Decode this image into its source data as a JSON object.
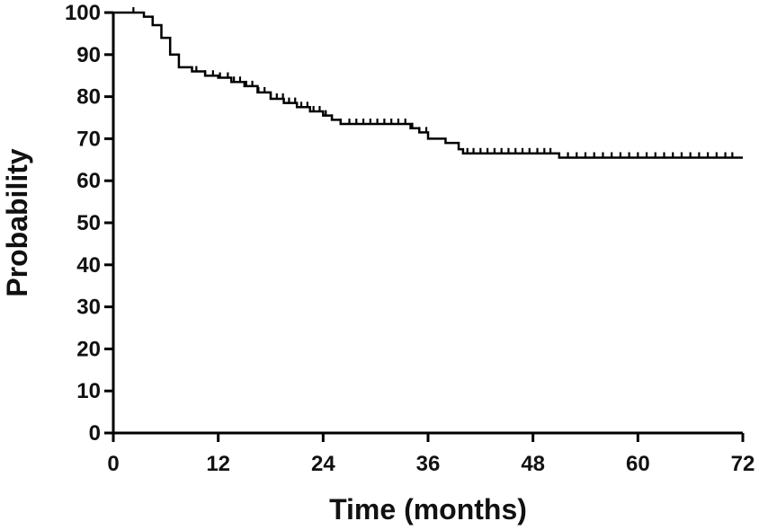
{
  "chart_data": {
    "type": "line",
    "title": "",
    "xlabel": "Time (months)",
    "ylabel": "Probability",
    "xlim": [
      0,
      72
    ],
    "ylim": [
      0,
      100
    ],
    "x_ticks": [
      "0",
      "12",
      "24",
      "36",
      "48",
      "60",
      "72"
    ],
    "y_ticks": [
      "0",
      "10",
      "20",
      "30",
      "40",
      "50",
      "60",
      "70",
      "80",
      "90",
      "100"
    ],
    "grid": false,
    "legend": "none",
    "line_color": "#000000",
    "series": [
      {
        "style": "step",
        "points": [
          [
            0,
            100
          ],
          [
            2.5,
            100
          ],
          [
            3.5,
            99
          ],
          [
            4.5,
            97
          ],
          [
            5.5,
            94
          ],
          [
            6.5,
            90
          ],
          [
            7.5,
            87
          ],
          [
            9,
            86
          ],
          [
            10.5,
            85
          ],
          [
            12,
            84.5
          ],
          [
            13.5,
            83.5
          ],
          [
            15,
            82.5
          ],
          [
            16.5,
            81
          ],
          [
            18,
            79.5
          ],
          [
            19.5,
            78.5
          ],
          [
            21,
            77.5
          ],
          [
            22.5,
            76.5
          ],
          [
            24,
            75.5
          ],
          [
            25,
            74.5
          ],
          [
            26,
            73.5
          ],
          [
            33,
            73.5
          ],
          [
            34,
            72.5
          ],
          [
            35,
            71.5
          ],
          [
            36,
            70
          ],
          [
            38,
            69
          ],
          [
            39.5,
            67.5
          ],
          [
            40,
            66.5
          ],
          [
            50.5,
            66.5
          ],
          [
            51,
            65.5
          ],
          [
            72,
            65.5
          ]
        ],
        "censor_times": [
          2.3,
          9.5,
          10.5,
          11.4,
          12.2,
          13.1,
          13.8,
          14.5,
          15.2,
          15.9,
          16.6,
          17.3,
          18.0,
          18.7,
          19.4,
          20.1,
          20.8,
          21.5,
          22.2,
          22.9,
          23.6,
          24.3,
          25.0,
          26.0,
          27.0,
          27.8,
          28.6,
          29.4,
          30.2,
          31.0,
          31.8,
          32.6,
          33.4,
          34.2,
          35.0,
          35.8,
          40.5,
          41.2,
          42.0,
          42.8,
          43.6,
          44.4,
          45.2,
          46.0,
          46.8,
          47.6,
          48.5,
          49.3,
          50.0,
          52.0,
          53.0,
          54.0,
          55.0,
          56.0,
          57.0,
          58.0,
          59.0,
          60.0,
          61.0,
          62.0,
          63.0,
          64.0,
          65.0,
          66.0,
          67.0,
          68.0,
          69.0,
          70.0,
          70.8
        ]
      }
    ]
  }
}
